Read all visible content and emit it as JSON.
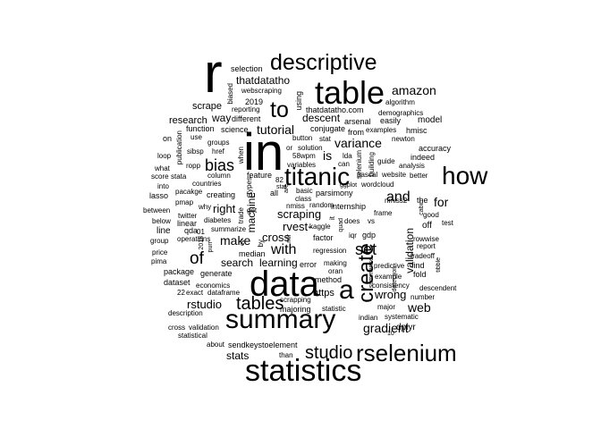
{
  "words": {
    "r": "r",
    "in": "in",
    "data": "data",
    "table": "table",
    "summary": "summary",
    "statistics": "statistics",
    "titanic": "titanic",
    "descriptive": "descriptive",
    "how": "how",
    "rselenium": "rselenium",
    "studio": "studio",
    "create": "create",
    "a": "a",
    "to": "to",
    "tables": "tables",
    "bias": "bias",
    "of": "of",
    "set": "set",
    "with": "with",
    "variance": "variance",
    "amazon": "amazon",
    "tutorial": "tutorial",
    "make": "make",
    "and": "and",
    "gradient": "gradient",
    "web": "web",
    "for": "for",
    "scraping": "scraping",
    "rvest": "rvest",
    "cross": "cross",
    "rstudio": "rstudio",
    "learning": "learning",
    "search": "search",
    "right": "right",
    "is": "is",
    "wrong": "wrong",
    "thatdatatho": "thatdatatho",
    "descent": "descent",
    "stats": "stats",
    "way": "way",
    "scrape": "scrape",
    "research": "research",
    "validation": "validation",
    "machine": "machine",
    "selection": "selection",
    "webscraping": "webscraping",
    "reporting": "reporting",
    "2019": "2019",
    "biased": "biased",
    "using": "using",
    "demographics": "demographics",
    "algorithm": "algorithm",
    "thatdatatho_com": "thatdatatho.com",
    "arsenal": "arsenal",
    "easily": "easily",
    "model": "model",
    "different": "different",
    "function": "function",
    "science": "science",
    "conjugate": "conjugate",
    "from": "from",
    "examples": "examples",
    "hmisc": "hmisc",
    "use": "use",
    "groups": "groups",
    "button": "button",
    "stat": "stat",
    "newton": "newton",
    "on": "on",
    "publication": "publication",
    "sibsp": "sibsp",
    "href": "href",
    "solution": "solution",
    "or": "or",
    "accuracy": "accuracy",
    "loop": "loop",
    "when": "when",
    "58wpm": "58wpm",
    "indeed": "indeed",
    "guide": "guide",
    "ropp": "ropp",
    "variables": "variables",
    "can": "can",
    "what": "what",
    "column": "column",
    "feature": "feature",
    "analysis": "analysis",
    "score": "score",
    "stata": "stata",
    "better": "better",
    "website": "website",
    "into": "into",
    "countries": "countries",
    "parsimony": "parsimony",
    "pacakge": "pacakge",
    "lasso": "lasso",
    "creating": "creating",
    "cu": "cu",
    "all": "all",
    "basic": "basic",
    "class": "class",
    "nmiss2": "nmiss2",
    "pmap": "pmap",
    "why": "why",
    "random": "random",
    "internship": "internship",
    "the": "the",
    "between": "between",
    "get": "get",
    "nmiss": "nmiss",
    "frame": "frame",
    "good": "good",
    "twitter": "twitter",
    "below": "below",
    "linear": "linear",
    "diabetes": "diabetes",
    "kaggle": "kaggle",
    "does": "does",
    "vs": "vs",
    "test": "test",
    "line": "line",
    "qda": "qda",
    "summarize": "summarize",
    "off": "off",
    "group": "group",
    "operations": "operations",
    "01": "01",
    "factor": "factor",
    "iqr": "iqr",
    "gdp": "gdp",
    "rowwise": "rowwise",
    "price": "price",
    "median": "median",
    "regression": "regression",
    "report": "report",
    "pima": "pima",
    "tradeoff": "tradeoff",
    "error": "error",
    "making": "making",
    "predictive": "predictive",
    "find": "find",
    "package": "package",
    "generate": "generate",
    "oran": "oran",
    "fold": "fold",
    "dataset": "dataset",
    "economics": "economics",
    "method": "method",
    "example": "example",
    "consistency": "consistency",
    "exact": "exact",
    "dataframe": "dataframe",
    "scrapping": "scrapping",
    "number": "number",
    "descendent": "descendent",
    "https": "https",
    "major": "major",
    "description": "description",
    "majoring": "majoring",
    "statistic": "statistic",
    "systematic": "systematic",
    "indian": "indian",
    "validation2": "validation",
    "dplyr": "dplyr",
    "cross2": "cross",
    "statistical": "statistical",
    "about": "about",
    "sendkeystoelement": "sendkeystoelement",
    "than": "than",
    "n22": "22",
    "n82": "82",
    "n18": "18",
    "n10": "10",
    "ggplot": "ggplot",
    "wordcloud": "wordcloud",
    "pascal": "pascal",
    "stat_small": "stat",
    "selenium": "selenium",
    "lda": "lda",
    "building": "building",
    "summarise": "summarise",
    "detection": "detection",
    "purr": "purr",
    "cv": "cv",
    "by": "by",
    "quad": "quad",
    "types": "types",
    "trade": "trade",
    "it": "it",
    "r_small": "r",
    "tibble": "tibble",
    "cabin": "cabin",
    "n2018": "2018",
    "nnet": "nnet",
    "n1": "1",
    "mlr": "mlr",
    "are": "are",
    "bolt": "bolt",
    "pipe": "pipe",
    "knit": "knit",
    "is_small": "is",
    "tree": "tree"
  }
}
